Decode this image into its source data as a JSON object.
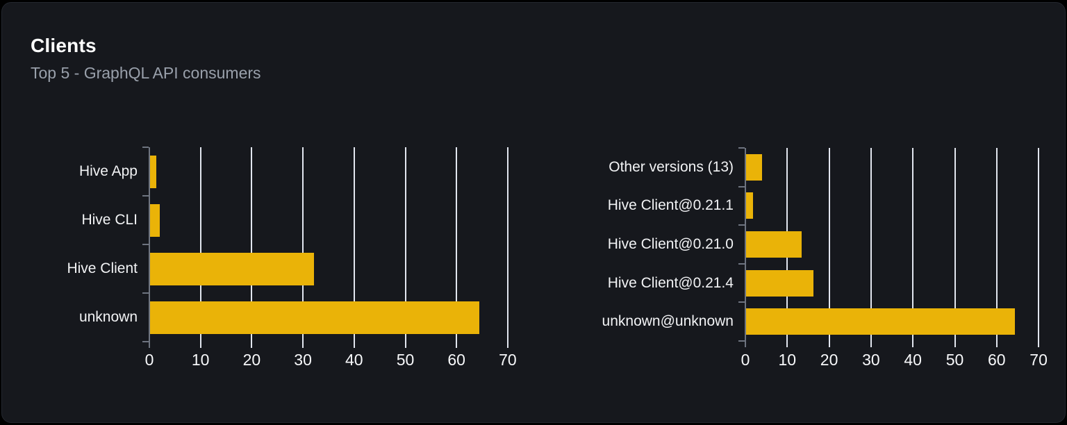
{
  "header": {
    "title": "Clients",
    "subtitle": "Top 5 - GraphQL API consumers"
  },
  "chart_data": [
    {
      "type": "bar",
      "name": "clients-by-name",
      "orientation": "horizontal",
      "categories": [
        "Hive App",
        "Hive CLI",
        "Hive Client",
        "unknown"
      ],
      "values": [
        1.3,
        2.0,
        32.1,
        64.4
      ],
      "xticks": [
        0,
        10,
        20,
        30,
        40,
        50,
        60,
        70
      ],
      "xlabel": "",
      "ylabel": "",
      "xlim": [
        0,
        71
      ],
      "grid": true,
      "legend": false
    },
    {
      "type": "bar",
      "name": "clients-by-version",
      "orientation": "horizontal",
      "categories": [
        "Other versions (13)",
        "Hive Client@0.21.1",
        "Hive Client@0.21.0",
        "Hive Client@0.21.4",
        "unknown@unknown"
      ],
      "values": [
        4.0,
        1.8,
        13.5,
        16.2,
        64.4
      ],
      "xticks": [
        0,
        10,
        20,
        30,
        40,
        50,
        60,
        70
      ],
      "xlabel": "",
      "ylabel": "",
      "xlim": [
        0,
        71
      ],
      "grid": true,
      "legend": false
    }
  ],
  "colors": {
    "bar": "#eab308",
    "gridline": "#e2e6ef",
    "axis": "#6e7480",
    "category_label": "#f2f3f5",
    "tick_label": "#f7f8fa",
    "title": "#ffffff",
    "subtitle": "#99a0ab",
    "card_bg": "#16181d",
    "card_border": "#23272f",
    "page_bg": "#000000"
  }
}
